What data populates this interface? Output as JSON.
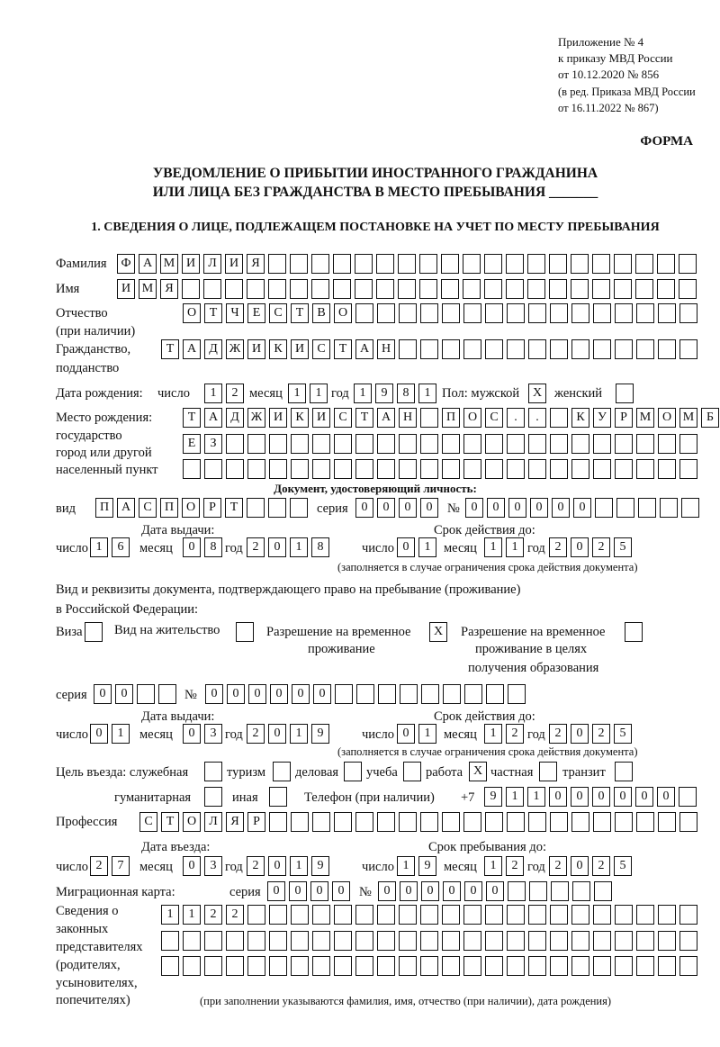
{
  "header": {
    "appendix": [
      "Приложение № 4",
      "к приказу МВД России",
      "от 10.12.2020 № 856"
    ],
    "revision": [
      "(в ред. Приказа МВД России",
      "от 16.11.2022 № 867)"
    ],
    "form_label": "ФОРМА",
    "title_line1": "УВЕДОМЛЕНИЕ О ПРИБЫТИИ ИНОСТРАННОГО ГРАЖДАНИНА",
    "title_line2": "ИЛИ ЛИЦА БЕЗ ГРАЖДАНСТВА В МЕСТО ПРЕБЫВАНИЯ _______",
    "section1": "1. СВЕДЕНИЯ О ЛИЦЕ, ПОДЛЕЖАЩЕМ ПОСТАНОВКЕ НА УЧЕТ ПО МЕСТУ ПРЕБЫВАНИЯ"
  },
  "labels": {
    "surname": "Фамилия",
    "name": "Имя",
    "patronymic": "Отчество",
    "patronymic_note": "(при наличии)",
    "citizenship": "Гражданство,",
    "citizenship2": "подданство",
    "birth_date": "Дата рождения:",
    "day": "число",
    "month": "месяц",
    "year": "год",
    "sex": "Пол: мужской",
    "female": "женский",
    "birth_place": "Место рождения:",
    "bp2": "государство",
    "bp3": "город или другой",
    "bp4": "населенный пункт",
    "id_doc": "Документ, удостоверяющий личность:",
    "kind": "вид",
    "series": "серия",
    "number": "№",
    "issue_date": "Дата выдачи:",
    "valid_until": "Срок действия до:",
    "valid_note": "(заполняется в случае ограничения срока действия документа)",
    "permit_doc1": "Вид и реквизиты документа, подтверждающего право на пребывание (проживание)",
    "permit_doc2": "в Российской Федерации:",
    "visa": "Виза",
    "residence": "Вид на жительство",
    "temp_res1": "Разрешение на временное",
    "temp_res2": "проживание",
    "temp_edu1": "Разрешение на временное",
    "temp_edu2": "проживание в целях",
    "temp_edu3": "получения образования",
    "purpose": "Цель въезда: служебная",
    "tourism": "туризм",
    "business": "деловая",
    "study": "учеба",
    "work": "работа",
    "private": "частная",
    "transit": "транзит",
    "humanitarian": "гуманитарная",
    "other": "иная",
    "phone": "Телефон (при наличии)",
    "phone_prefix": "+7",
    "profession": "Профессия",
    "entry_date": "Дата въезда:",
    "stay_until": "Срок пребывания до:",
    "migration_card": "Миграционная карта:",
    "reps": [
      "Сведения о",
      "законных",
      "представителях",
      "(родителях,",
      "усыновителях,",
      "попечителях)"
    ],
    "reps_note": "(при заполнении указываются фамилия, имя, отчество (при наличии), дата рождения)"
  },
  "fields": {
    "surname": "ФАМИЛИЯ                    ",
    "name": "ИМЯ                        ",
    "patronymic": "ОТЧЕСТВО                ",
    "citizenship": "ТАДЖИКИСТАН              ",
    "birth_day": "12",
    "birth_month": "11",
    "birth_year": "1981",
    "sex_male": "X",
    "sex_female": " ",
    "birth_place1": "ТАДЖИКИСТАН ПОС.. КУРМОМБ",
    "birth_place2": "ЕЗ                      ",
    "birth_place3": "                        ",
    "id_kind": "ПАСПОРТ   ",
    "id_series": "0000",
    "id_number": "000000     ",
    "id_issue_day": "16",
    "id_issue_month": "08",
    "id_issue_year": "2018",
    "id_valid_day": "01",
    "id_valid_month": "11",
    "id_valid_year": "2025",
    "visa": " ",
    "residence": " ",
    "temp_res": "X",
    "temp_edu": " ",
    "permit_series": "00  ",
    "permit_number": "000000         ",
    "permit_issue_day": "01",
    "permit_issue_month": "03",
    "permit_issue_year": "2019",
    "permit_valid_day": "01",
    "permit_valid_month": "12",
    "permit_valid_year": "2025",
    "p_service": " ",
    "p_tourism": " ",
    "p_business": " ",
    "p_study": " ",
    "p_work": "X",
    "p_private": " ",
    "p_transit": " ",
    "p_humanitarian": " ",
    "p_other": " ",
    "phone": "911000000 ",
    "profession": "СТОЛЯР                    ",
    "entry_day": "27",
    "entry_month": "03",
    "entry_year": "2019",
    "stay_day": "19",
    "stay_month": "12",
    "stay_year": "2025",
    "mc_series": "0000",
    "mc_number": "000000     ",
    "reps1": "1122                     ",
    "reps2": "                         ",
    "reps3": "                         "
  }
}
